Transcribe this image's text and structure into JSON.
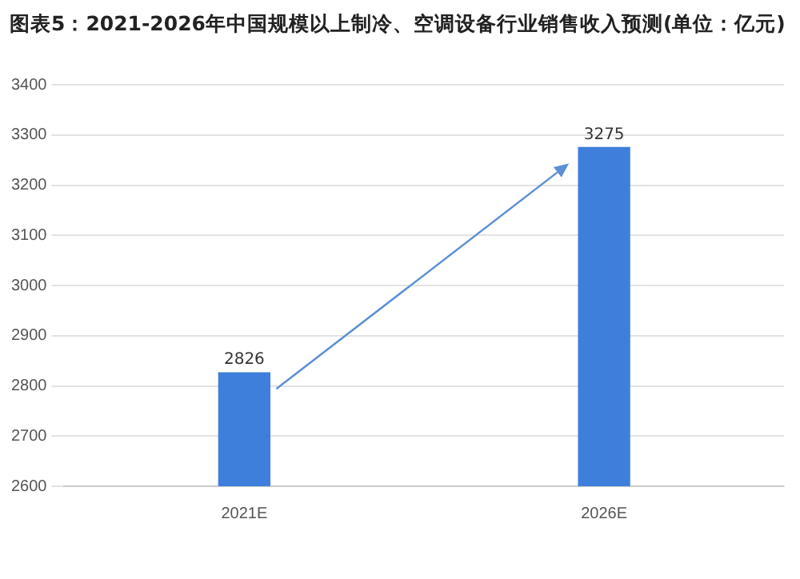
{
  "chart_data": {
    "type": "bar",
    "title": "图表5：2021-2026年中国规模以上制冷、空调设备行业销售收入预测(单位：亿元)",
    "categories": [
      "2021E",
      "2026E"
    ],
    "values": [
      2826,
      3275
    ],
    "color": "#3f7fdc",
    "ylim": [
      2600,
      3400
    ],
    "yticks": [
      2600,
      2700,
      2800,
      2900,
      3000,
      3100,
      3200,
      3300,
      3400
    ],
    "grid": "y",
    "data_labels": true
  }
}
